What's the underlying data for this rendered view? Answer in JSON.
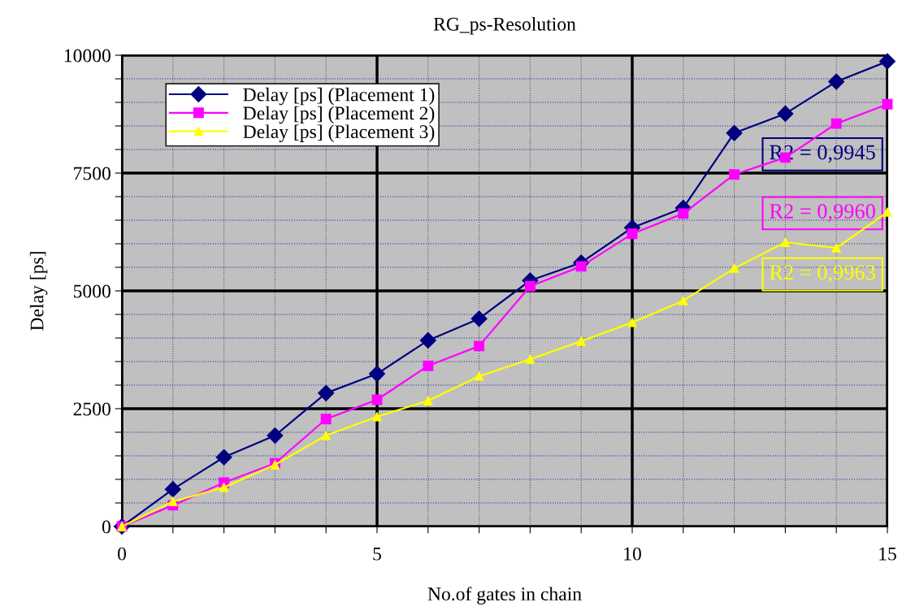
{
  "chart_data": {
    "type": "line",
    "title": "RG_ps-Resolution",
    "xlabel": "No.of gates in chain",
    "ylabel": "Delay [ps]",
    "x": [
      0,
      1,
      2,
      3,
      4,
      5,
      6,
      7,
      8,
      9,
      10,
      11,
      12,
      13,
      14,
      15
    ],
    "series": [
      {
        "name": "Delay [ps] (Placement 1)",
        "color": "#000080",
        "marker": "diamond",
        "values": [
          0,
          790,
          1470,
          1930,
          2830,
          3240,
          3950,
          4410,
          5220,
          5600,
          6340,
          6760,
          8350,
          8760,
          9440,
          9870
        ]
      },
      {
        "name": "Delay [ps] (Placement 2)",
        "color": "#ff00ff",
        "marker": "square",
        "values": [
          0,
          450,
          930,
          1340,
          2280,
          2690,
          3410,
          3830,
          5100,
          5520,
          6210,
          6640,
          7470,
          7830,
          8550,
          8960
        ]
      },
      {
        "name": "Delay [ps] (Placement 3)",
        "color": "#ffff00",
        "marker": "triangle",
        "values": [
          0,
          530,
          830,
          1310,
          1930,
          2330,
          2670,
          3190,
          3550,
          3930,
          4330,
          4790,
          5480,
          6030,
          5910,
          6670
        ]
      }
    ],
    "xlim": [
      0,
      15
    ],
    "ylim": [
      0,
      10000
    ],
    "xticks": [
      0,
      {
        "value": 1,
        "label": null
      },
      {
        "value": 2,
        "label": null
      },
      {
        "value": 3,
        "label": null
      },
      {
        "value": 4,
        "label": null
      },
      5,
      {
        "value": 6,
        "label": null
      },
      {
        "value": 7,
        "label": null
      },
      {
        "value": 8,
        "label": null
      },
      {
        "value": 9,
        "label": null
      },
      10,
      {
        "value": 11,
        "label": null
      },
      {
        "value": 12,
        "label": null
      },
      {
        "value": 13,
        "label": null
      },
      {
        "value": 14,
        "label": null
      },
      15
    ],
    "yticks": [
      0,
      {
        "value": 500,
        "label": null
      },
      {
        "value": 1000,
        "label": null
      },
      {
        "value": 1500,
        "label": null
      },
      {
        "value": 2000,
        "label": null
      },
      2500,
      {
        "value": 3000,
        "label": null
      },
      {
        "value": 3500,
        "label": null
      },
      {
        "value": 4000,
        "label": null
      },
      {
        "value": 4500,
        "label": null
      },
      5000,
      {
        "value": 5500,
        "label": null
      },
      {
        "value": 6000,
        "label": null
      },
      {
        "value": 6500,
        "label": null
      },
      {
        "value": 7000,
        "label": null
      },
      7500,
      {
        "value": 8000,
        "label": null
      },
      {
        "value": 8500,
        "label": null
      },
      {
        "value": 9000,
        "label": null
      },
      {
        "value": 9500,
        "label": null
      },
      10000
    ],
    "annotations": [
      "R2 = 0,9945",
      "R2 = 0,9960",
      "R2 = 0,9963"
    ],
    "grid": true,
    "legend": "top left",
    "line_style": "solid"
  }
}
